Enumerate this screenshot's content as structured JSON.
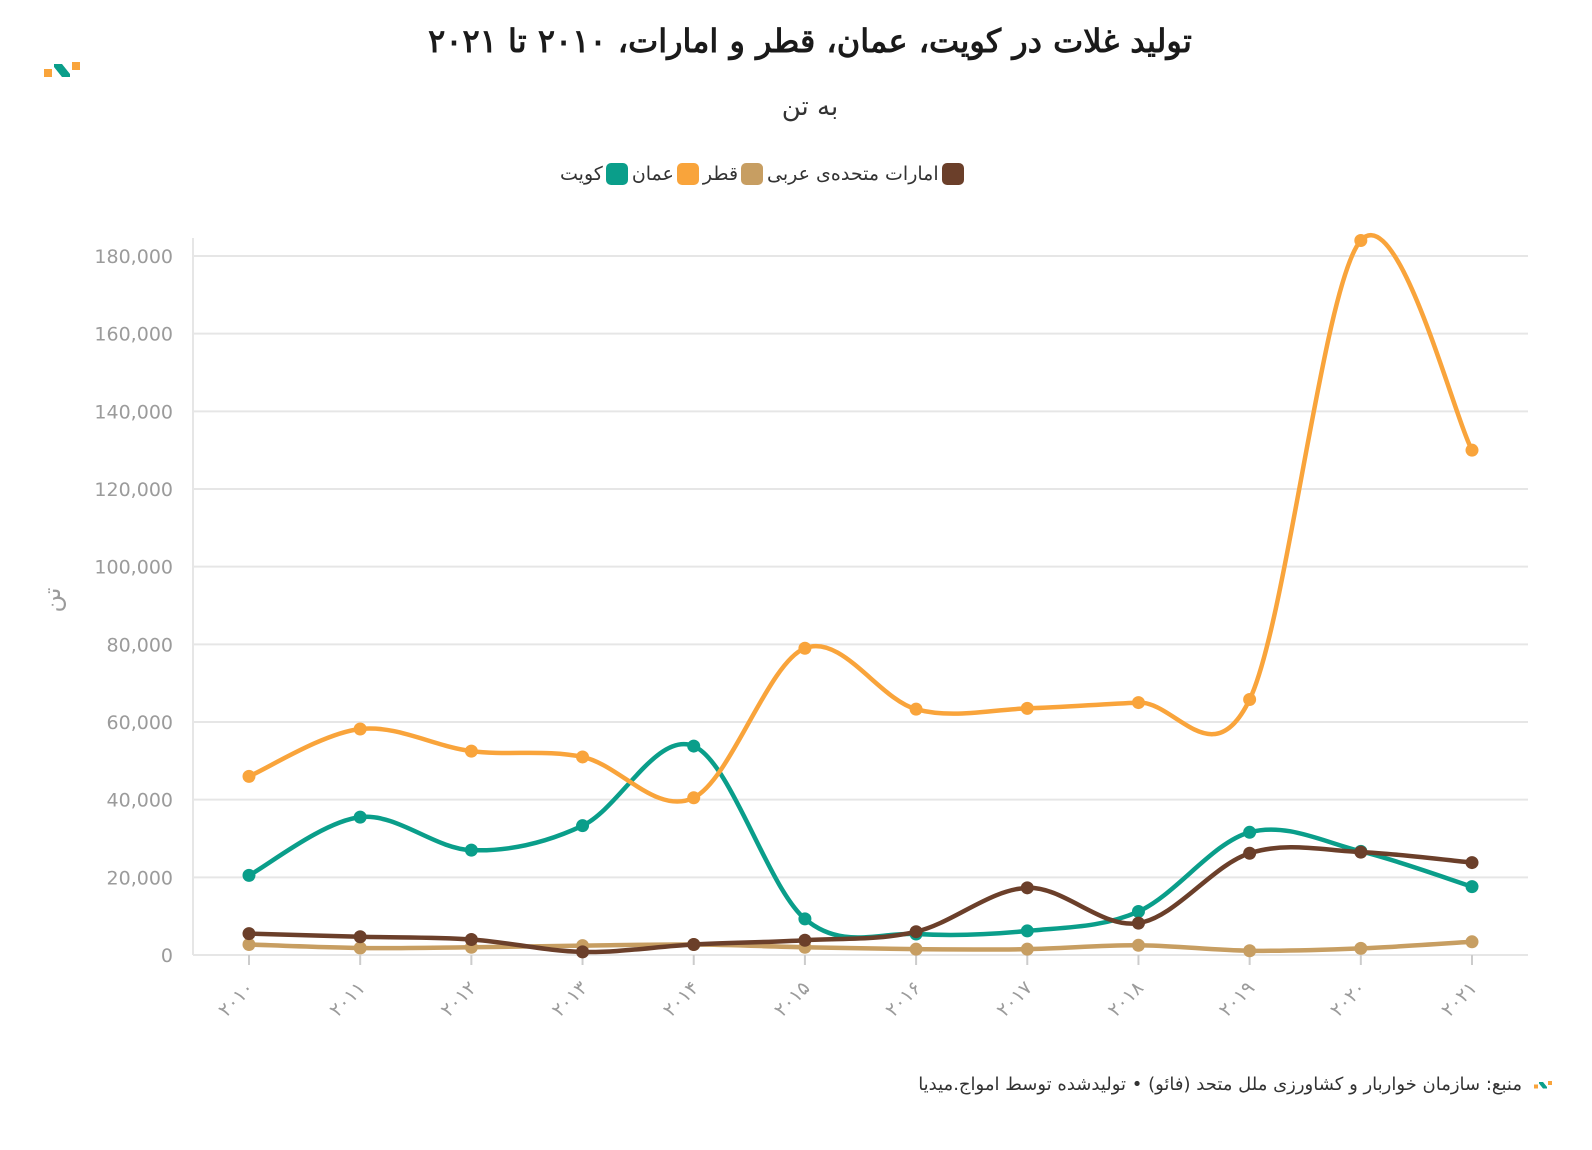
{
  "header": {
    "title": "تولید غلات در کویت، عمان، قطر و امارات، ۲۰۱۰ تا ۲۰۲۱",
    "subtitle": "به تن",
    "ylabel": "تن"
  },
  "footer": {
    "source": "منبع: سازمان خواربار و کشاورزی ملل متحد (فائو) • تولیدشده توسط امواج.میدیا"
  },
  "colors": {
    "kuwait": "#0a9e8a",
    "oman": "#f9a43b",
    "qatar": "#c79e62",
    "uae": "#6b3f2a",
    "grid": "#e6e6e6",
    "axis_text": "#9b9b9b"
  },
  "chart_data": {
    "type": "line",
    "categories": [
      "۲۰۱۰",
      "۲۰۱۱",
      "۲۰۱۲",
      "۲۰۱۳",
      "۲۰۱۴",
      "۲۰۱۵",
      "۲۰۱۶",
      "۲۰۱۷",
      "۲۰۱۸",
      "۲۰۱۹",
      "۲۰۲۰",
      "۲۰۲۱"
    ],
    "ylim": [
      0,
      180000
    ],
    "yticks": [
      0,
      20000,
      40000,
      60000,
      80000,
      100000,
      120000,
      140000,
      160000,
      180000
    ],
    "ytick_labels": [
      "0",
      "20,000",
      "40,000",
      "60,000",
      "80,000",
      "100,000",
      "120,000",
      "140,000",
      "160,000",
      "180,000"
    ],
    "grid": true,
    "legend_position": "top",
    "series": [
      {
        "name": "کویت",
        "color_key": "kuwait",
        "values": [
          20500,
          35500,
          27000,
          33300,
          53800,
          9300,
          5400,
          6200,
          11200,
          31600,
          26700,
          17600
        ]
      },
      {
        "name": "عمان",
        "color_key": "oman",
        "values": [
          46000,
          58200,
          52500,
          51000,
          40500,
          79000,
          63300,
          63500,
          65000,
          65800,
          184000,
          130000
        ]
      },
      {
        "name": "قطر",
        "color_key": "qatar",
        "values": [
          2700,
          1800,
          2000,
          2400,
          2700,
          2000,
          1500,
          1500,
          2500,
          1100,
          1700,
          3400
        ]
      },
      {
        "name": "امارات متحده‌ی عربی",
        "color_key": "uae",
        "values": [
          5500,
          4700,
          4000,
          800,
          2700,
          3800,
          6000,
          17300,
          8200,
          26200,
          26500,
          23800
        ]
      }
    ]
  }
}
